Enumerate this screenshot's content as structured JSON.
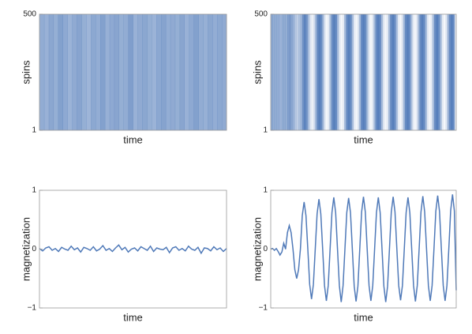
{
  "chart_data": [
    {
      "type": "raster",
      "xlabel": "time",
      "ylabel": "spins",
      "ylim": [
        1,
        500
      ],
      "yticks": [
        1,
        500
      ],
      "color": "#4f79b8",
      "values": [
        0.62,
        0.58,
        0.66,
        0.6,
        0.7,
        0.64,
        0.57,
        0.63,
        0.68,
        0.6,
        0.55,
        0.65,
        0.61,
        0.7,
        0.59,
        0.64,
        0.67,
        0.6,
        0.62,
        0.72,
        0.58,
        0.63,
        0.66,
        0.6,
        0.57,
        0.65,
        0.69,
        0.61,
        0.63,
        0.6,
        0.67,
        0.58,
        0.64,
        0.7,
        0.62,
        0.59,
        0.66,
        0.61,
        0.65,
        0.63
      ]
    },
    {
      "type": "raster",
      "xlabel": "time",
      "ylabel": "spins",
      "ylim": [
        1,
        500
      ],
      "yticks": [
        1,
        500
      ],
      "color": "#4f79b8",
      "values": [
        0.65,
        0.6,
        0.62,
        0.6,
        0.58,
        0.55,
        0.6,
        0.62,
        0.6,
        0.7,
        0.72,
        0.65,
        0.55,
        0.4,
        0.35,
        0.45,
        0.5,
        0.8,
        0.92,
        0.8,
        0.5,
        0.2,
        0.08,
        0.2,
        0.5,
        0.85,
        0.95,
        0.85,
        0.5,
        0.15,
        0.05,
        0.15,
        0.5,
        0.85,
        0.95,
        0.85,
        0.5,
        0.15,
        0.05,
        0.15,
        0.5,
        0.85,
        0.95,
        0.85,
        0.5,
        0.15,
        0.05,
        0.15,
        0.5,
        0.85,
        0.95,
        0.85,
        0.5,
        0.15,
        0.05,
        0.15,
        0.5,
        0.85,
        0.95,
        0.85,
        0.5,
        0.15,
        0.05,
        0.15,
        0.5,
        0.85,
        0.95,
        0.85,
        0.5,
        0.15,
        0.05,
        0.15,
        0.5,
        0.85,
        0.95,
        0.85,
        0.5,
        0.15,
        0.05,
        0.15,
        0.5,
        0.85,
        0.95,
        0.85,
        0.5,
        0.15,
        0.05,
        0.15,
        0.5,
        0.85,
        0.95,
        0.85,
        0.5,
        0.15,
        0.05,
        0.15,
        0.5,
        0.85,
        0.95,
        0.85,
        0.2
      ]
    },
    {
      "type": "line",
      "xlabel": "time",
      "ylabel": "magnetization",
      "ylim": [
        -1,
        1
      ],
      "yticks": [
        {
          "value": -1,
          "label": "−1"
        },
        0,
        1
      ],
      "color": "#4f79b8",
      "values": [
        0.01,
        -0.03,
        0.02,
        0.04,
        -0.02,
        0.01,
        -0.04,
        0.03,
        0.0,
        -0.02,
        0.05,
        -0.01,
        0.02,
        -0.05,
        0.03,
        0.01,
        -0.02,
        0.04,
        -0.03,
        0.0,
        0.06,
        -0.02,
        0.01,
        -0.04,
        0.02,
        0.07,
        -0.01,
        0.03,
        -0.05,
        0.0,
        0.02,
        -0.03,
        0.04,
        0.01,
        -0.02,
        0.05,
        -0.04,
        0.02,
        0.0,
        -0.01,
        0.03,
        -0.06,
        0.02,
        0.04,
        -0.02,
        0.01,
        -0.03,
        0.05,
        0.0,
        -0.02,
        0.03,
        -0.07,
        0.02,
        0.01,
        -0.03,
        0.04,
        -0.01,
        0.02,
        -0.04,
        0.01
      ]
    },
    {
      "type": "line",
      "xlabel": "time",
      "ylabel": "magnetization",
      "ylim": [
        -1,
        1
      ],
      "yticks": [
        {
          "value": -1,
          "label": "−1"
        },
        0,
        1
      ],
      "color": "#4f79b8",
      "values": [
        0,
        0.01,
        -0.02,
        0.01,
        -0.04,
        -0.1,
        -0.05,
        0.1,
        0,
        0.28,
        0.4,
        0.28,
        0,
        -0.35,
        -0.5,
        -0.35,
        0,
        0.57,
        0.8,
        0.57,
        0,
        -0.6,
        -0.85,
        -0.6,
        0,
        0.6,
        0.85,
        0.6,
        0,
        -0.62,
        -0.88,
        -0.62,
        0,
        0.62,
        0.88,
        0.62,
        0,
        -0.62,
        -0.9,
        -0.62,
        0,
        0.62,
        0.87,
        0.62,
        0,
        -0.63,
        -0.89,
        -0.63,
        0,
        0.63,
        0.89,
        0.63,
        0,
        -0.62,
        -0.88,
        -0.62,
        0,
        0.62,
        0.88,
        0.62,
        0,
        -0.63,
        -0.9,
        -0.63,
        0,
        0.63,
        0.89,
        0.63,
        0,
        -0.62,
        -0.87,
        -0.62,
        0,
        0.62,
        0.88,
        0.62,
        0,
        -0.62,
        -0.89,
        -0.62,
        0,
        0.63,
        0.9,
        0.63,
        0,
        -0.62,
        -0.88,
        -0.62,
        0,
        0.64,
        0.91,
        0.64,
        0,
        -0.62,
        -0.88,
        -0.62,
        0,
        0.65,
        0.93,
        0.65,
        -0.7
      ]
    }
  ]
}
